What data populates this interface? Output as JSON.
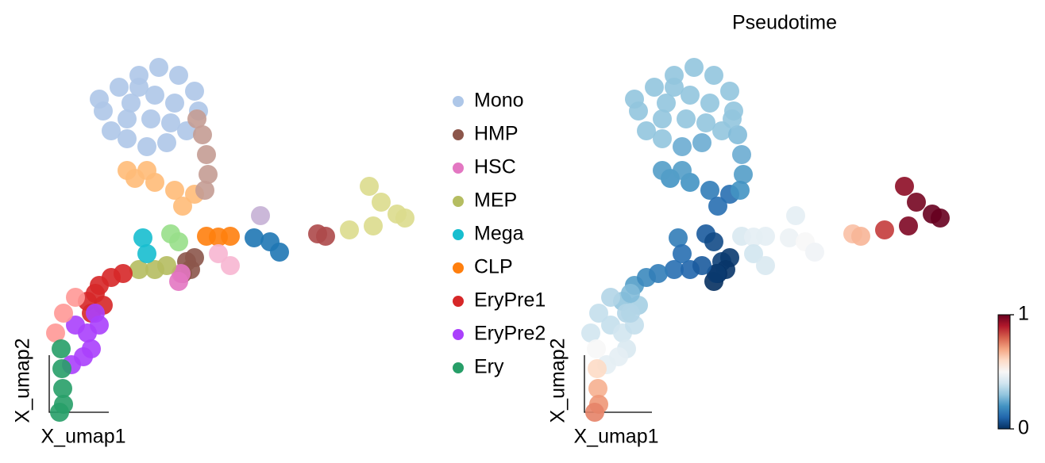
{
  "chart_data": [
    {
      "type": "scatter",
      "xlabel": "X_umap1",
      "ylabel": "X_umap2",
      "xlim": [
        0,
        475
      ],
      "ylim": [
        0,
        455
      ],
      "legend": "right",
      "series": [
        {
          "name": "Mono",
          "color": "#aec7e8",
          "x": [
            70,
            90,
            115,
            140,
            165,
            185,
            190,
            175,
            150,
            125,
            100,
            80,
            105,
            135,
            160,
            130,
            100,
            155,
            65,
            115
          ],
          "y": [
            385,
            415,
            430,
            440,
            430,
            410,
            385,
            360,
            345,
            340,
            350,
            360,
            395,
            405,
            395,
            375,
            375,
            370,
            400,
            415
          ]
        },
        {
          "color": "#ffbb78",
          "x": [
            110,
            135,
            160,
            185,
            170,
            125,
            100
          ],
          "y": [
            300,
            295,
            285,
            280,
            265,
            310,
            310
          ]
        },
        {
          "color": "#c49c94",
          "x": [
            195,
            200,
            202,
            198,
            188
          ],
          "y": [
            355,
            330,
            305,
            285,
            375
          ]
        },
        {
          "color": "#98df8a",
          "x": [
            155,
            165
          ],
          "y": [
            230,
            220
          ]
        },
        {
          "name": "HMP",
          "color": "#8c564b",
          "x": [
            175,
            185,
            170,
            180
          ],
          "y": [
            195,
            200,
            180,
            185
          ]
        },
        {
          "name": "HSC",
          "color": "#e377c2",
          "x": [
            165,
            168
          ],
          "y": [
            170,
            180
          ]
        },
        {
          "name": "MEP",
          "color": "#b5bd61",
          "x": [
            115,
            135,
            150
          ],
          "y": [
            185,
            185,
            190
          ]
        },
        {
          "name": "Mega",
          "color": "#17becf",
          "x": [
            120,
            125
          ],
          "y": [
            225,
            205
          ]
        },
        {
          "name": "CLP",
          "color": "#ff7f0e",
          "x": [
            200,
            215,
            230
          ],
          "y": [
            227,
            226,
            227
          ]
        },
        {
          "color": "#1f77b4",
          "x": [
            260,
            280,
            292
          ],
          "y": [
            225,
            220,
            207
          ]
        },
        {
          "color": "#f7b6d2",
          "x": [
            215,
            230
          ],
          "y": [
            205,
            190
          ]
        },
        {
          "color": "#c5b0d5",
          "x": [
            268
          ],
          "y": [
            253
          ]
        },
        {
          "color": "#ad494a",
          "x": [
            340,
            350
          ],
          "y": [
            230,
            227
          ]
        },
        {
          "color": "#dbdb8d",
          "x": [
            405,
            420,
            440,
            450,
            410,
            380
          ],
          "y": [
            290,
            270,
            255,
            250,
            240,
            235
          ]
        },
        {
          "name": "EryPre1",
          "color": "#d62728",
          "x": [
            50,
            65,
            80,
            70,
            55,
            95,
            60
          ],
          "y": [
            145,
            165,
            175,
            140,
            130,
            180,
            155
          ]
        },
        {
          "name": "EryPre2",
          "color": "#aa40fc",
          "x": [
            35,
            50,
            65,
            55,
            45,
            30,
            60
          ],
          "y": [
            115,
            105,
            115,
            85,
            75,
            65,
            130
          ]
        },
        {
          "color": "#ff9896",
          "x": [
            10,
            20,
            35
          ],
          "y": [
            105,
            130,
            150
          ]
        },
        {
          "name": "Ery",
          "color": "#279e68",
          "x": [
            17,
            18,
            19,
            20,
            15
          ],
          "y": [
            85,
            60,
            35,
            15,
            5
          ]
        }
      ]
    },
    {
      "type": "scatter",
      "title": "Pseudotime",
      "xlabel": "X_umap1",
      "ylabel": "X_umap2",
      "xlim": [
        0,
        475
      ],
      "ylim": [
        0,
        455
      ],
      "colormap": "RdBu_r",
      "clim": [
        0,
        1
      ],
      "cticks": [
        0,
        1
      ],
      "x": [
        70,
        90,
        115,
        140,
        165,
        185,
        190,
        175,
        150,
        125,
        100,
        80,
        105,
        135,
        160,
        130,
        100,
        155,
        65,
        115,
        110,
        135,
        160,
        185,
        170,
        125,
        100,
        195,
        200,
        202,
        198,
        188,
        155,
        165,
        175,
        185,
        170,
        180,
        165,
        168,
        115,
        135,
        150,
        120,
        125,
        200,
        215,
        230,
        260,
        280,
        292,
        215,
        230,
        268,
        340,
        350,
        405,
        420,
        440,
        450,
        410,
        380,
        50,
        65,
        80,
        70,
        55,
        95,
        60,
        35,
        50,
        65,
        55,
        45,
        30,
        60,
        10,
        20,
        35,
        17,
        18,
        19,
        20,
        15
      ],
      "y": [
        385,
        415,
        430,
        440,
        430,
        410,
        385,
        360,
        345,
        340,
        350,
        360,
        395,
        405,
        395,
        375,
        375,
        370,
        400,
        415,
        300,
        295,
        285,
        280,
        265,
        310,
        310,
        355,
        330,
        305,
        285,
        375,
        230,
        220,
        195,
        200,
        180,
        185,
        170,
        180,
        185,
        185,
        190,
        225,
        205,
        227,
        226,
        227,
        225,
        220,
        207,
        205,
        190,
        253,
        230,
        227,
        290,
        270,
        255,
        250,
        240,
        235,
        145,
        165,
        175,
        140,
        130,
        180,
        155,
        115,
        105,
        115,
        85,
        75,
        65,
        130,
        105,
        130,
        150,
        85,
        60,
        35,
        15,
        5
      ],
      "values": [
        0.3,
        0.3,
        0.3,
        0.3,
        0.3,
        0.3,
        0.3,
        0.3,
        0.25,
        0.25,
        0.3,
        0.3,
        0.3,
        0.3,
        0.3,
        0.3,
        0.3,
        0.3,
        0.3,
        0.3,
        0.2,
        0.2,
        0.15,
        0.12,
        0.12,
        0.22,
        0.22,
        0.28,
        0.25,
        0.22,
        0.2,
        0.3,
        0.08,
        0.05,
        0.03,
        0.02,
        0.0,
        0.01,
        0.0,
        0.02,
        0.12,
        0.1,
        0.08,
        0.15,
        0.12,
        0.42,
        0.45,
        0.45,
        0.47,
        0.5,
        0.48,
        0.4,
        0.42,
        0.45,
        0.65,
        0.67,
        0.95,
        0.98,
        1,
        1,
        0.97,
        0.85,
        0.3,
        0.22,
        0.18,
        0.33,
        0.35,
        0.15,
        0.28,
        0.38,
        0.4,
        0.38,
        0.42,
        0.45,
        0.45,
        0.35,
        0.4,
        0.38,
        0.35,
        0.5,
        0.6,
        0.68,
        0.72,
        0.75
      ]
    }
  ]
}
